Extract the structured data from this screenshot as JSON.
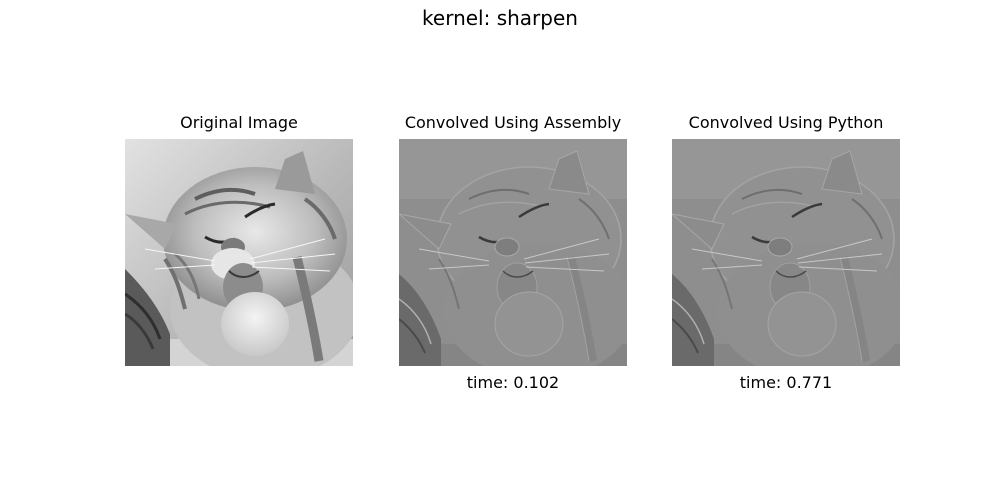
{
  "figure": {
    "title": "kernel: sharpen"
  },
  "panels": [
    {
      "title": "Original Image",
      "caption": "",
      "image": "grayscale-cat-photo",
      "style": "original"
    },
    {
      "title": "Convolved Using Assembly",
      "caption": "time: 0.102",
      "image": "grayscale-cat-photo-sharpened",
      "style": "sharpened"
    },
    {
      "title": "Convolved Using Python",
      "caption": "time: 0.771",
      "image": "grayscale-cat-photo-sharpened",
      "style": "sharpened"
    }
  ]
}
